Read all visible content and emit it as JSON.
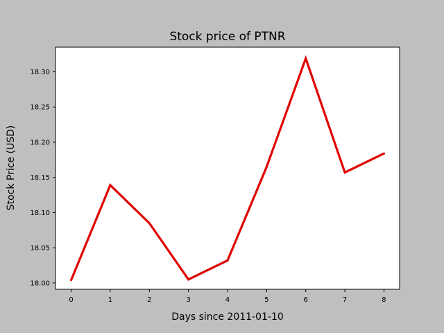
{
  "chart_data": {
    "type": "line",
    "title": "Stock price of PTNR",
    "xlabel": "Days since 2011-01-10",
    "ylabel": "Stock Price (USD)",
    "x": [
      0,
      1,
      2,
      3,
      4,
      5,
      6,
      7,
      8
    ],
    "series": [
      {
        "values": [
          18.004,
          18.139,
          18.085,
          18.005,
          18.032,
          18.165,
          18.319,
          18.157,
          18.184
        ],
        "color": "#e00000"
      }
    ],
    "xticks": [
      0,
      1,
      2,
      3,
      4,
      5,
      6,
      7,
      8
    ],
    "xtick_labels": [
      "0",
      "1",
      "2",
      "3",
      "4",
      "5",
      "6",
      "7",
      "8"
    ],
    "yticks": [
      18.0,
      18.05,
      18.1,
      18.15,
      18.2,
      18.25,
      18.3
    ],
    "ytick_labels": [
      "18.00",
      "18.05",
      "18.10",
      "18.15",
      "18.20",
      "18.25",
      "18.30"
    ],
    "xlim": [
      -0.4,
      8.4
    ],
    "ylim": [
      17.991,
      18.335
    ],
    "grid": false,
    "colors": {
      "figure_background": "#bfbfbf",
      "plot_background": "#ffffff",
      "line": "#e00000"
    }
  }
}
